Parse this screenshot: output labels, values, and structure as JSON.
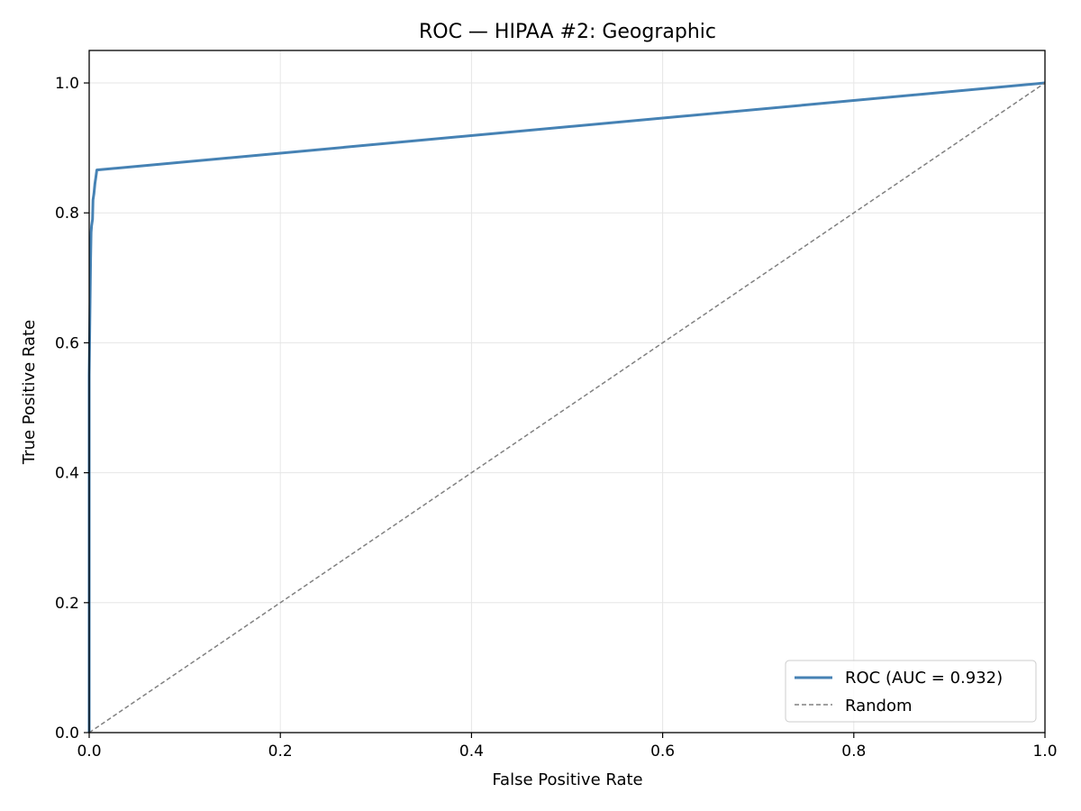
{
  "chart_data": {
    "type": "line",
    "title": "ROC — HIPAA #2: Geographic",
    "xlabel": "False Positive Rate",
    "ylabel": "True Positive Rate",
    "xlim": [
      0.0,
      1.0
    ],
    "ylim": [
      0.0,
      1.05
    ],
    "xticks": [
      0.0,
      0.2,
      0.4,
      0.6,
      0.8,
      1.0
    ],
    "yticks": [
      0.0,
      0.2,
      0.4,
      0.6,
      0.8,
      1.0
    ],
    "xtick_labels": [
      "0.0",
      "0.2",
      "0.4",
      "0.6",
      "0.8",
      "1.0"
    ],
    "ytick_labels": [
      "0.0",
      "0.2",
      "0.4",
      "0.6",
      "0.8",
      "1.0"
    ],
    "grid": true,
    "legend_position": "lower-right",
    "series": [
      {
        "name": "ROC (AUC = 0.932)",
        "color": "#4682b4",
        "style": "solid",
        "x": [
          0.0,
          0.0,
          0.0015,
          0.002,
          0.0025,
          0.0035,
          0.004,
          0.005,
          0.006,
          0.007,
          0.008,
          1.0
        ],
        "y": [
          0.0,
          0.55,
          0.73,
          0.77,
          0.78,
          0.79,
          0.82,
          0.83,
          0.845,
          0.855,
          0.866,
          1.0
        ]
      },
      {
        "name": "Random",
        "color": "#808080",
        "style": "dashed",
        "x": [
          0.0,
          1.0
        ],
        "y": [
          0.0,
          1.0
        ]
      }
    ]
  }
}
